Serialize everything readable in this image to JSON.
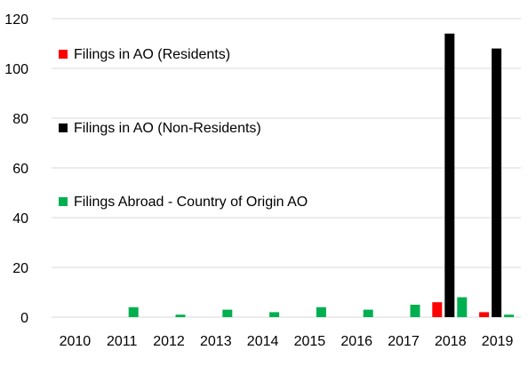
{
  "chart_data": {
    "type": "bar",
    "title": "",
    "xlabel": "",
    "ylabel": "",
    "categories": [
      "2010",
      "2011",
      "2012",
      "2013",
      "2014",
      "2015",
      "2016",
      "2017",
      "2018",
      "2019"
    ],
    "ylim": [
      0,
      120
    ],
    "yticks": [
      0,
      20,
      40,
      60,
      80,
      100,
      120
    ],
    "grid": true,
    "legend_position": "left",
    "series": [
      {
        "name": "Filings in AO (Residents)",
        "color": "#ff0000",
        "values": [
          0,
          0,
          0,
          0,
          0,
          0,
          0,
          0,
          6,
          2
        ]
      },
      {
        "name": "Filings in AO (Non-Residents)",
        "color": "#000000",
        "values": [
          0,
          0,
          0,
          0,
          0,
          0,
          0,
          0,
          114,
          108
        ]
      },
      {
        "name": "Filings Abroad - Country of Origin AO",
        "color": "#00b050",
        "values": [
          0,
          4,
          1,
          3,
          2,
          4,
          3,
          5,
          8,
          1
        ]
      }
    ]
  }
}
